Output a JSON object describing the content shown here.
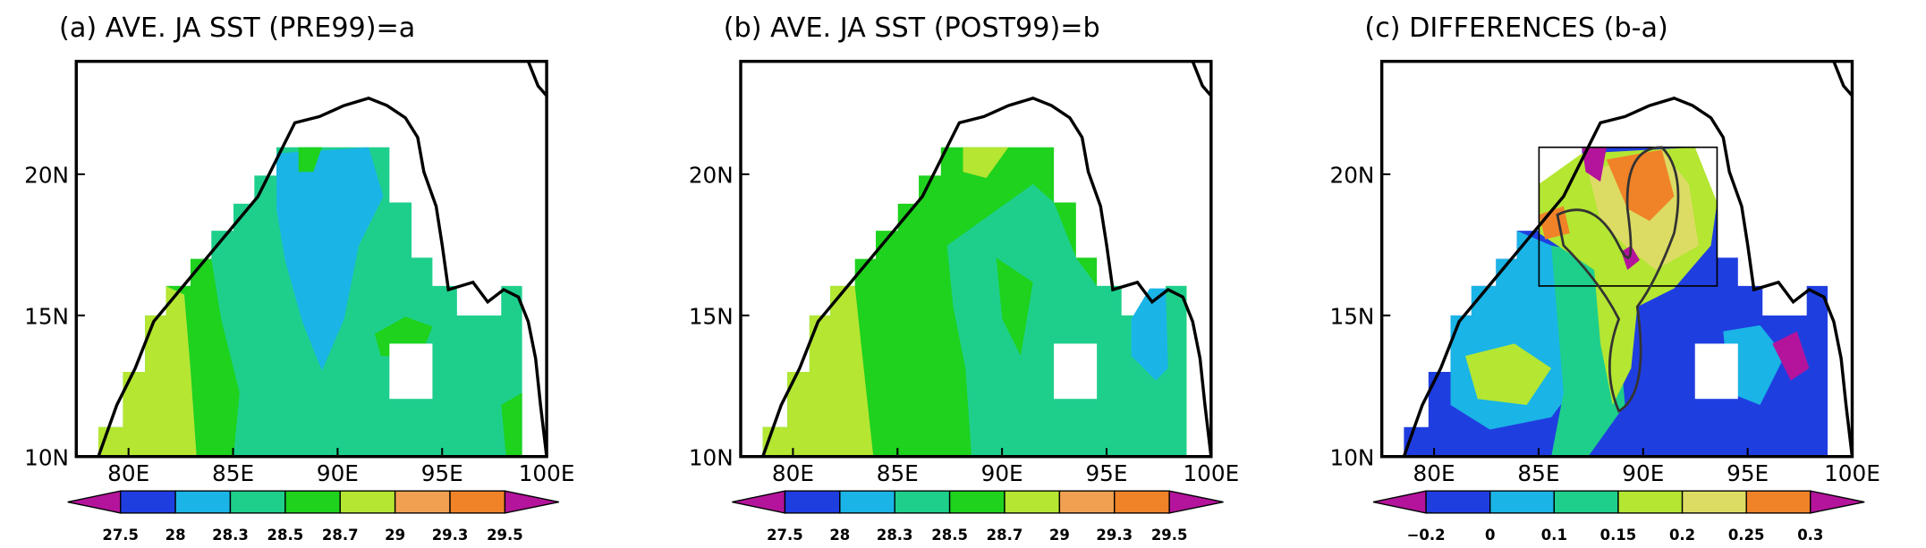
{
  "panels": [
    {
      "title": "(a) AVE. JA SST (PRE99)=a",
      "xlim": [
        77.5,
        100
      ],
      "ylim": [
        10,
        24
      ],
      "xticks": [
        {
          "value": 80,
          "label": "80E"
        },
        {
          "value": 85,
          "label": "85E"
        },
        {
          "value": 90,
          "label": "90E"
        },
        {
          "value": 95,
          "label": "95E"
        },
        {
          "value": 100,
          "label": "100E"
        }
      ],
      "yticks": [
        {
          "value": 10,
          "label": "10N"
        },
        {
          "value": 15,
          "label": "15N"
        },
        {
          "value": 20,
          "label": "20N"
        }
      ],
      "colorbar": {
        "levels": [
          27.5,
          28,
          28.3,
          28.5,
          28.7,
          29,
          29.3,
          29.5
        ],
        "colors": [
          "#b4149b",
          "#1f3ee0",
          "#1ab4e6",
          "#1ecf8c",
          "#1ed21e",
          "#b4e632",
          "#f0a050",
          "#f08228",
          "#b4149b"
        ]
      }
    },
    {
      "title": "(b) AVE. JA SST (POST99)=b",
      "xlim": [
        77.5,
        100
      ],
      "ylim": [
        10,
        24
      ],
      "xticks": [
        {
          "value": 80,
          "label": "80E"
        },
        {
          "value": 85,
          "label": "85E"
        },
        {
          "value": 90,
          "label": "90E"
        },
        {
          "value": 95,
          "label": "95E"
        },
        {
          "value": 100,
          "label": "100E"
        }
      ],
      "yticks": [
        {
          "value": 10,
          "label": "10N"
        },
        {
          "value": 15,
          "label": "15N"
        },
        {
          "value": 20,
          "label": "20N"
        }
      ],
      "colorbar": {
        "levels": [
          27.5,
          28,
          28.3,
          28.5,
          28.7,
          29,
          29.3,
          29.5
        ],
        "colors": [
          "#b4149b",
          "#1f3ee0",
          "#1ab4e6",
          "#1ecf8c",
          "#1ed21e",
          "#b4e632",
          "#f0a050",
          "#f08228",
          "#b4149b"
        ]
      }
    },
    {
      "title": "(c)  DIFFERENCES (b-a)",
      "xlim": [
        77.5,
        100
      ],
      "ylim": [
        10,
        24
      ],
      "xticks": [
        {
          "value": 80,
          "label": "80E"
        },
        {
          "value": 85,
          "label": "85E"
        },
        {
          "value": 90,
          "label": "90E"
        },
        {
          "value": 95,
          "label": "95E"
        },
        {
          "value": 100,
          "label": "100E"
        }
      ],
      "yticks": [
        {
          "value": 10,
          "label": "10N"
        },
        {
          "value": 15,
          "label": "15N"
        },
        {
          "value": 20,
          "label": "20N"
        }
      ],
      "colorbar": {
        "levels": [
          {
            "value": -0.2,
            "label": "−0.2"
          },
          0,
          0.1,
          0.15,
          0.2,
          0.25,
          0.3
        ],
        "colors": [
          "#b4149b",
          "#1f3ee0",
          "#1ab4e6",
          "#1ecf8c",
          "#b4e632",
          "#dcdc64",
          "#f08228",
          "#b4149b"
        ]
      }
    }
  ]
}
